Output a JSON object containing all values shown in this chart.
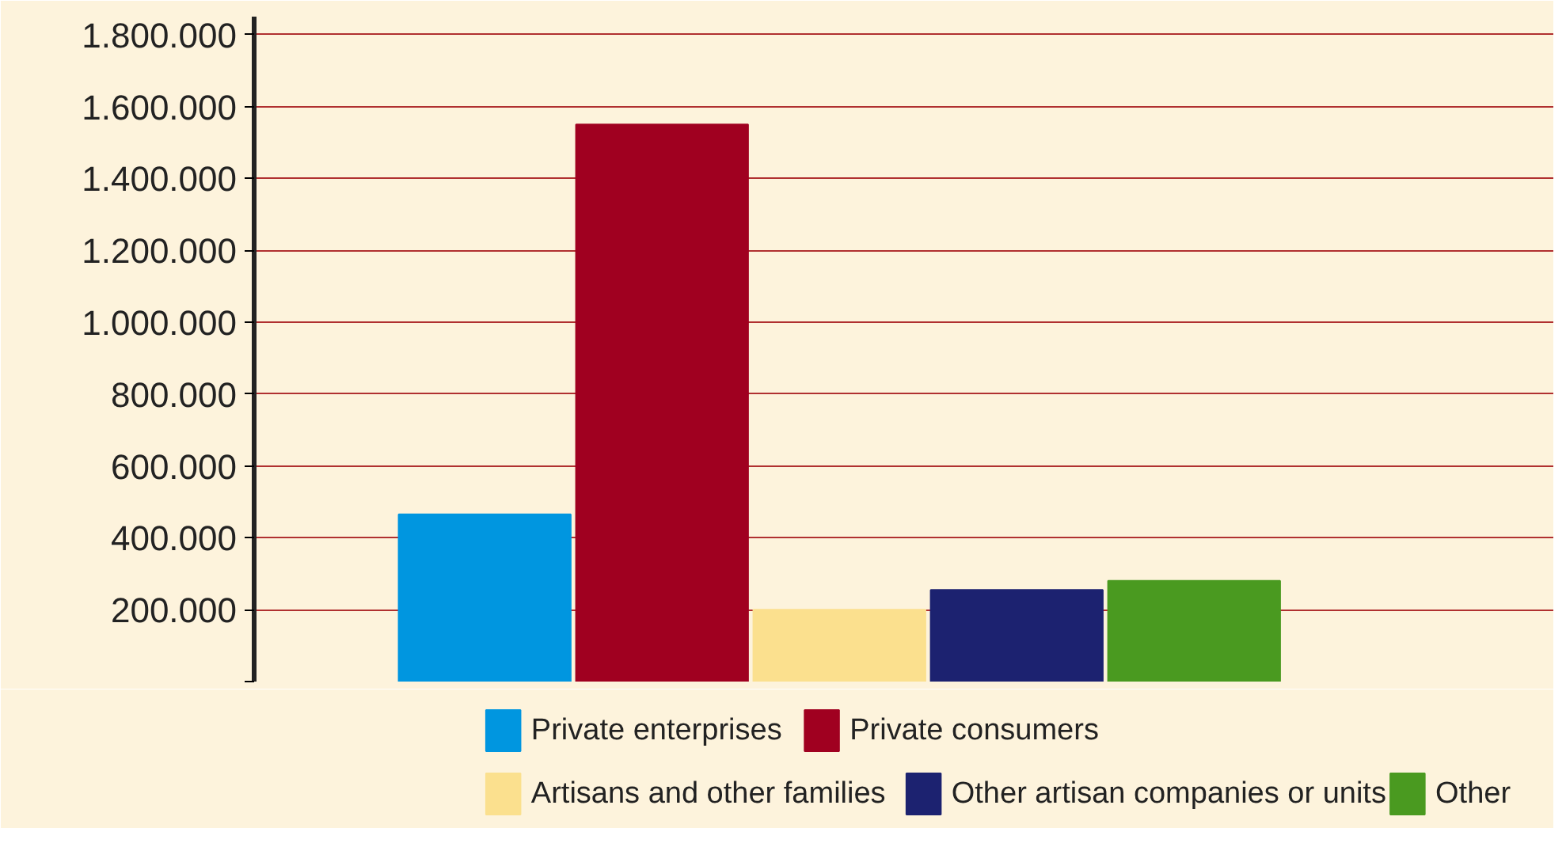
{
  "chart_data": {
    "type": "bar",
    "categories": [
      null
    ],
    "series": [
      {
        "name": "Private enterprises",
        "color": "#0096e0",
        "values": [
          465000
        ]
      },
      {
        "name": "Private consumers",
        "color": "#a00020",
        "values": [
          1550000
        ]
      },
      {
        "name": "Artisans and other families",
        "color": "#fbe08e",
        "values": [
          200000
        ]
      },
      {
        "name": "Other artisan companies or units",
        "color": "#1c2270",
        "values": [
          255000
        ]
      },
      {
        "name": "Other",
        "color": "#4a9a20",
        "values": [
          280000
        ]
      }
    ],
    "ylim": [
      0,
      1850000
    ],
    "yticks": [
      {
        "value": 0,
        "label": null
      },
      {
        "value": 200000,
        "label": "200.000"
      },
      {
        "value": 400000,
        "label": "400.000"
      },
      {
        "value": 600000,
        "label": "600.000"
      },
      {
        "value": 800000,
        "label": "800.000"
      },
      {
        "value": 1000000,
        "label": "1.000.000"
      },
      {
        "value": 1200000,
        "label": "1.200.000"
      },
      {
        "value": 1400000,
        "label": "1.400.000"
      },
      {
        "value": 1600000,
        "label": "1.600.000"
      },
      {
        "value": 1800000,
        "label": "1.800.000"
      }
    ],
    "grid": "y",
    "legend": "bottom"
  }
}
